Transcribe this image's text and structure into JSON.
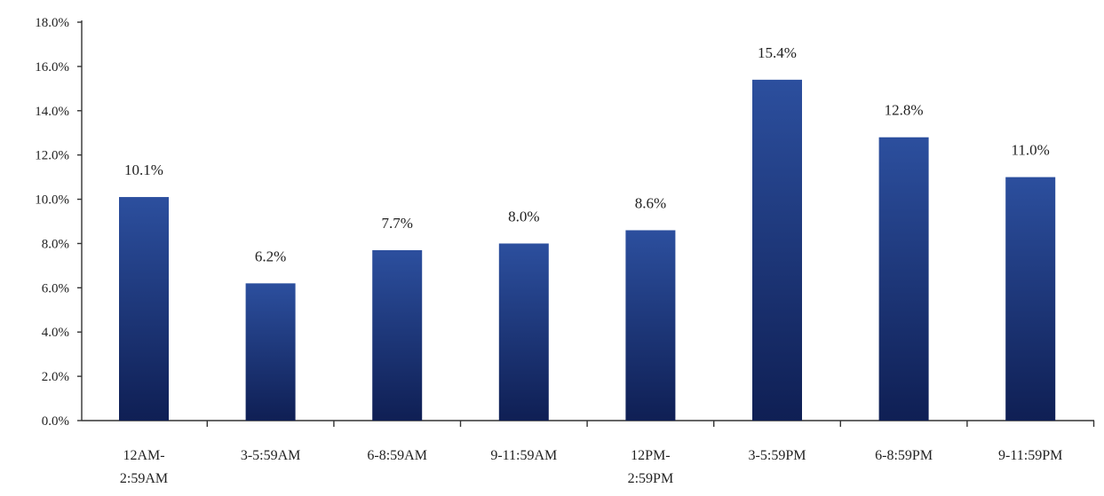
{
  "chart_data": {
    "type": "bar",
    "title": "",
    "xlabel": "",
    "ylabel": "",
    "ylim": [
      0,
      18
    ],
    "yticks": [
      0,
      2,
      4,
      6,
      8,
      10,
      12,
      14,
      16,
      18
    ],
    "ytick_labels": [
      "0.0%",
      "2.0%",
      "4.0%",
      "6.0%",
      "8.0%",
      "10.0%",
      "12.0%",
      "14.0%",
      "16.0%",
      "18.0%"
    ],
    "categories": [
      [
        "12AM-",
        "2:59AM"
      ],
      [
        "3-5:59AM"
      ],
      [
        "6-8:59AM"
      ],
      [
        "9-11:59AM"
      ],
      [
        "12PM-",
        "2:59PM"
      ],
      [
        "3-5:59PM"
      ],
      [
        "6-8:59PM"
      ],
      [
        "9-11:59PM"
      ]
    ],
    "values": [
      10.1,
      6.2,
      7.7,
      8.0,
      8.6,
      15.4,
      12.8,
      11.0
    ],
    "data_labels": [
      "10.1%",
      "6.2%",
      "7.7%",
      "8.0%",
      "8.6%",
      "15.4%",
      "12.8%",
      "11.0%"
    ],
    "grid": false,
    "legend": "none",
    "colors": {
      "bar_top": "#2c4f9e",
      "bar_bottom": "#0f1f54",
      "axis": "#333333",
      "text": "#222222"
    }
  }
}
